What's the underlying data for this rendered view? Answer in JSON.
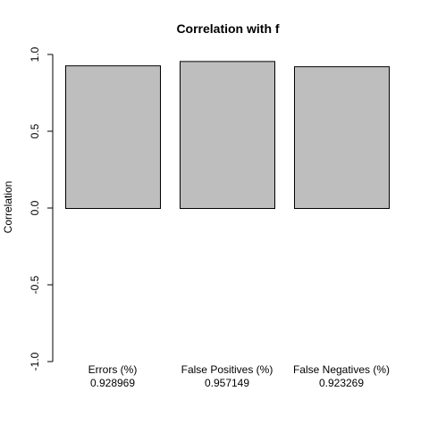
{
  "chart_data": {
    "type": "bar",
    "title": "Correlation with f",
    "xlabel": "",
    "ylabel": "Correlation",
    "ylim": [
      -1.0,
      1.0
    ],
    "yticks": [
      -1.0,
      -0.5,
      0.0,
      0.5,
      1.0
    ],
    "ytick_labels": [
      "-1.0",
      "-0.5",
      "0.0",
      "0.5",
      "1.0"
    ],
    "categories": [
      "Errors (%)",
      "False Positives (%)",
      "False Negatives (%)"
    ],
    "values": [
      0.928969,
      0.957149,
      0.923269
    ],
    "value_labels": [
      "0.928969",
      "0.957149",
      "0.923269"
    ],
    "bar_color": "#bebebe",
    "bar_edge_color": "#000000",
    "grid": false,
    "legend": "none"
  }
}
